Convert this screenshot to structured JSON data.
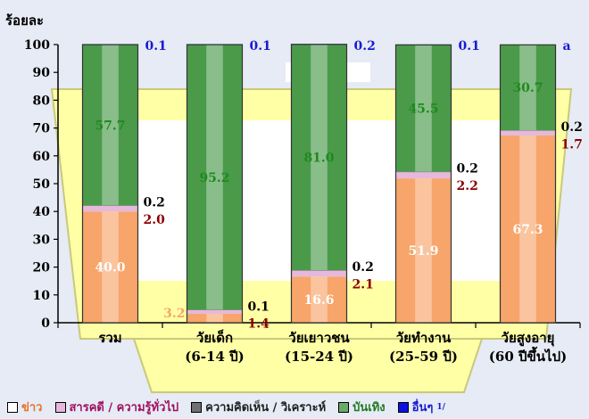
{
  "chart_data": {
    "type": "bar",
    "stacked": true,
    "ylabel": "ร้อยละ",
    "ylim": [
      0,
      100
    ],
    "yticks": [
      0,
      10,
      20,
      30,
      40,
      50,
      60,
      70,
      80,
      90,
      100
    ],
    "grid": false,
    "legend_position": "bottom",
    "categories": [
      [
        "รวม",
        ""
      ],
      [
        "วัยเด็ก",
        "(6-14 ปี)"
      ],
      [
        "วัยเยาวชน",
        "(15-24 ปี)"
      ],
      [
        "วัยทำงาน",
        "(25-59 ปี)"
      ],
      [
        "วัยสูงอายุ",
        "(60 ปีขึ้นไป)"
      ]
    ],
    "series": [
      {
        "name": "ข่าว",
        "color": "#f7a56a",
        "label_color": "#ffffff",
        "values": [
          40.0,
          3.2,
          16.6,
          51.9,
          67.3
        ],
        "labels": [
          "40.0",
          "3.2",
          "16.6",
          "51.9",
          "67.3"
        ]
      },
      {
        "name": "สารคดี / ความรู้ทั่วไป",
        "color": "#e6b8dc",
        "label_color": "#8b0000",
        "values": [
          2.0,
          1.4,
          2.1,
          2.2,
          1.7
        ],
        "labels": [
          "2.0",
          "1.4",
          "2.1",
          "2.2",
          "1.7"
        ]
      },
      {
        "name": "ความคิดเห็น / วิเคราะห์",
        "color": "#707070",
        "label_color": "#000000",
        "values": [
          0.2,
          0.1,
          0.2,
          0.2,
          0.2
        ],
        "labels": [
          "0.2",
          "0.1",
          "0.2",
          "0.2",
          "0.2"
        ]
      },
      {
        "name": "บันเทิง",
        "color": "#4a9a4a",
        "label_color": "#1f8a1f",
        "values": [
          57.7,
          95.2,
          81.0,
          45.5,
          30.7
        ],
        "labels": [
          "57.7",
          "95.2",
          "81.0",
          "45.5",
          "30.7"
        ]
      },
      {
        "name": "อื่นๆ",
        "superscript": "1/",
        "color": "#1010e0",
        "label_color": "#1a1ad0",
        "values": [
          0.1,
          0.1,
          0.2,
          0.1,
          0.0
        ],
        "labels": [
          "0.1",
          "0.1",
          "0.2",
          "0.1",
          "a"
        ]
      }
    ]
  }
}
